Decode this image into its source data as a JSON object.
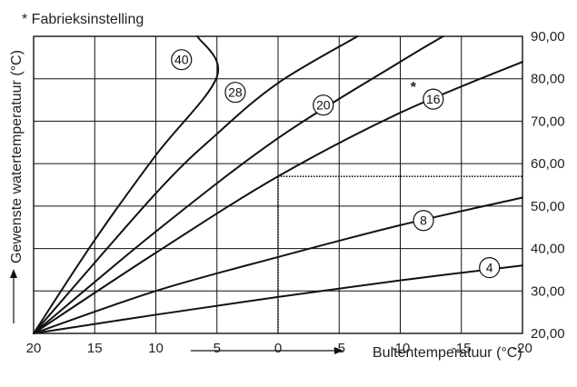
{
  "chart_data": {
    "type": "line",
    "title": "",
    "note": "* Fabrieksinstelling",
    "xlabel": "Buitentemperatuur (°C)",
    "ylabel": "Gewenste watertemperatuur (°C)",
    "x_ticks": [
      "20",
      "15",
      "10",
      "5",
      "0",
      "-5",
      "-10",
      "-15",
      "-20"
    ],
    "y_ticks": [
      "20,00",
      "30,00",
      "40,00",
      "50,00",
      "60,00",
      "70,00",
      "80,00",
      "90,00"
    ],
    "xlim": [
      20,
      -20
    ],
    "ylim": [
      20,
      90
    ],
    "grid": true,
    "factory_setting_marker": "*",
    "factory_setting_curve": "16",
    "reference_lines": {
      "x": 0,
      "y": 57
    },
    "series": [
      {
        "name": "4",
        "x": [
          20,
          10,
          0,
          -10,
          -20
        ],
        "y": [
          20,
          24.4,
          28.6,
          32.5,
          36
        ]
      },
      {
        "name": "8",
        "x": [
          20,
          10,
          0,
          -10,
          -20
        ],
        "y": [
          20,
          30,
          38,
          45.5,
          52
        ]
      },
      {
        "name": "16",
        "x": [
          20,
          10,
          0,
          -10,
          -20
        ],
        "y": [
          20,
          39,
          57,
          72,
          84
        ]
      },
      {
        "name": "20",
        "x": [
          20,
          10,
          0,
          -10,
          -13.5
        ],
        "y": [
          20,
          44,
          66,
          84,
          90
        ]
      },
      {
        "name": "28",
        "x": [
          20,
          10,
          5,
          0,
          -6.5
        ],
        "y": [
          20,
          53,
          67,
          79,
          90
        ]
      },
      {
        "name": "40",
        "x": [
          20,
          15,
          10,
          5,
          6.6
        ],
        "y": [
          20,
          42,
          62,
          80.5,
          90
        ]
      }
    ],
    "curve_labels": [
      {
        "text": "40",
        "x": 7.9,
        "y": 84.5
      },
      {
        "text": "28",
        "x": 3.5,
        "y": 76.8
      },
      {
        "text": "20",
        "x": -3.7,
        "y": 73.8
      },
      {
        "text": "16",
        "x": -12.7,
        "y": 75.2
      },
      {
        "text": "8",
        "x": -11.9,
        "y": 46.6
      },
      {
        "text": "4",
        "x": -17.3,
        "y": 35.5
      }
    ]
  }
}
